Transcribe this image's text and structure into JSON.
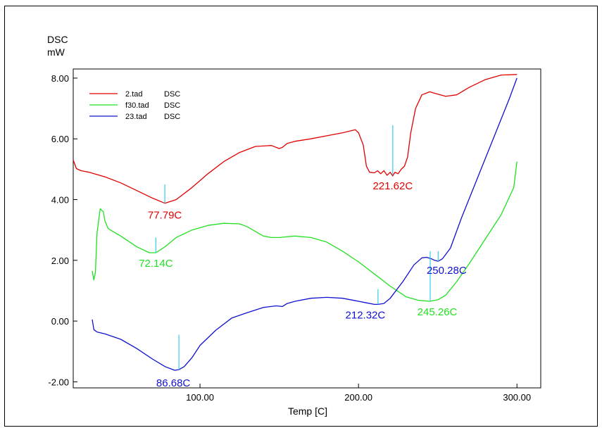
{
  "chart_data": {
    "type": "line",
    "ylabel_line1": "DSC",
    "ylabel_line2": "mW",
    "xlabel": "Temp  [C]",
    "xlim": [
      20,
      315
    ],
    "ylim": [
      -2.2,
      8.3
    ],
    "xticks": [
      100,
      200,
      300
    ],
    "xtick_labels": [
      "100.00",
      "200.00",
      "300.00"
    ],
    "yticks": [
      -2,
      0,
      2,
      4,
      6,
      8
    ],
    "ytick_labels": [
      "-2.00",
      "0.00",
      "2.00",
      "4.00",
      "6.00",
      "8.00"
    ],
    "grid": false,
    "legend_position": "top-left",
    "series": [
      {
        "name": "2.tad",
        "legend_suffix": "DSC",
        "color": "#e00000",
        "x": [
          20,
          22,
          25,
          30,
          40,
          50,
          60,
          70,
          77.79,
          85,
          95,
          105,
          115,
          125,
          135,
          145,
          150,
          152,
          155,
          160,
          170,
          180,
          190,
          198,
          200,
          203,
          205,
          207,
          210,
          212,
          214,
          216,
          218,
          220,
          221.62,
          223,
          225,
          227,
          229,
          231,
          233,
          236,
          240,
          245,
          248,
          255,
          262,
          270,
          280,
          290,
          300
        ],
        "y": [
          5.3,
          5.02,
          4.95,
          4.9,
          4.75,
          4.55,
          4.3,
          4.05,
          3.88,
          4.0,
          4.4,
          4.85,
          5.25,
          5.55,
          5.75,
          5.78,
          5.68,
          5.72,
          5.85,
          5.92,
          6.0,
          6.1,
          6.2,
          6.3,
          6.2,
          5.8,
          5.1,
          4.9,
          4.88,
          4.95,
          4.85,
          4.95,
          4.8,
          4.9,
          4.78,
          4.9,
          4.85,
          5.0,
          5.1,
          5.4,
          6.2,
          7.0,
          7.45,
          7.55,
          7.5,
          7.4,
          7.45,
          7.7,
          7.95,
          8.1,
          8.12
        ]
      },
      {
        "name": "f30.tad",
        "legend_suffix": "DSC",
        "color": "#22e022",
        "x": [
          32,
          33,
          34,
          35,
          37,
          39,
          40,
          42,
          45,
          50,
          60,
          68,
          72.14,
          78,
          85,
          95,
          105,
          115,
          125,
          130,
          135,
          140,
          145,
          150,
          160,
          170,
          180,
          190,
          200,
          210,
          220,
          230,
          238,
          245.26,
          250,
          255,
          262,
          270,
          280,
          290,
          298,
          300
        ],
        "y": [
          1.65,
          1.35,
          1.6,
          2.9,
          3.7,
          3.6,
          3.3,
          3.05,
          2.95,
          2.8,
          2.45,
          2.25,
          2.25,
          2.45,
          2.75,
          3.0,
          3.15,
          3.22,
          3.2,
          3.1,
          2.95,
          2.8,
          2.75,
          2.75,
          2.8,
          2.75,
          2.6,
          2.3,
          1.95,
          1.55,
          1.15,
          0.8,
          0.68,
          0.65,
          0.7,
          0.85,
          1.3,
          1.9,
          2.7,
          3.5,
          4.4,
          5.25
        ]
      },
      {
        "name": "23.tad",
        "legend_suffix": "DSC",
        "color": "#1010d0",
        "x": [
          32,
          33,
          35,
          40,
          50,
          60,
          70,
          78,
          84,
          86.68,
          90,
          95,
          100,
          110,
          120,
          130,
          140,
          148,
          152,
          155,
          160,
          170,
          180,
          190,
          200,
          205,
          210,
          212.32,
          216,
          220,
          228,
          235,
          240,
          243,
          246,
          248,
          250.28,
          253,
          258,
          265,
          275,
          285,
          295,
          300
        ],
        "y": [
          0.05,
          -0.28,
          -0.36,
          -0.42,
          -0.6,
          -0.9,
          -1.25,
          -1.5,
          -1.62,
          -1.6,
          -1.5,
          -1.2,
          -0.8,
          -0.3,
          0.1,
          0.28,
          0.45,
          0.5,
          0.48,
          0.58,
          0.65,
          0.75,
          0.78,
          0.75,
          0.65,
          0.6,
          0.55,
          0.55,
          0.58,
          0.75,
          1.3,
          1.85,
          2.08,
          2.1,
          2.05,
          2.0,
          1.97,
          2.05,
          2.4,
          3.4,
          4.7,
          6.0,
          7.3,
          8.0
        ]
      }
    ],
    "peaks": [
      {
        "label": "77.79C",
        "color": "#e00000",
        "x": 77.79,
        "y0": 3.88,
        "y1": 4.5
      },
      {
        "label": "221.62C",
        "color": "#e00000",
        "x": 221.62,
        "y0": 4.8,
        "y1": 6.45
      },
      {
        "label": "72.14C",
        "color": "#22e022",
        "x": 72.14,
        "y0": 2.25,
        "y1": 2.75
      },
      {
        "label": "245.26C",
        "color": "#22e022",
        "x": 245.26,
        "y0": 0.65,
        "y1": 2.3
      },
      {
        "label": "86.68C",
        "color": "#1010d0",
        "x": 86.68,
        "y0": -1.6,
        "y1": -0.45
      },
      {
        "label": "212.32C",
        "color": "#1010d0",
        "x": 212.32,
        "y0": 0.55,
        "y1": 1.05
      },
      {
        "label": "250.28C",
        "color": "#1010d0",
        "x": 250.28,
        "y0": 1.97,
        "y1": 2.3
      }
    ]
  }
}
